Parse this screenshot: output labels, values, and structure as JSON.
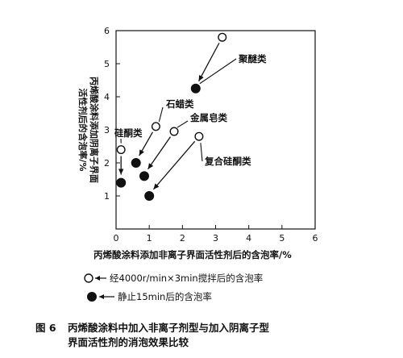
{
  "chart_data": {
    "type": "scatter",
    "xlabel": "丙烯酸涂料添加非离子界面活性剂后的含泡率/%",
    "ylabel": [
      "丙烯酸涂料添加阴离子界面",
      "活性剂后的含泡率/%"
    ],
    "xlim": [
      0,
      6
    ],
    "ylim": [
      0,
      6
    ],
    "xticks": [
      0,
      1,
      2,
      3,
      4,
      5,
      6
    ],
    "yticks": [
      0,
      1,
      2,
      3,
      4,
      5,
      6
    ],
    "grid": false,
    "series": [
      {
        "name": "经4000r/min×3min搅拌后的含泡率",
        "marker": "open-circle",
        "points": [
          [
            0.15,
            2.4
          ],
          [
            1.2,
            3.1
          ],
          [
            1.75,
            2.95
          ],
          [
            2.5,
            2.8
          ],
          [
            3.2,
            5.8
          ]
        ]
      },
      {
        "name": "静止15min后的含泡率",
        "marker": "filled-circle",
        "points": [
          [
            0.15,
            1.4
          ],
          [
            0.6,
            2.0
          ],
          [
            0.85,
            1.6
          ],
          [
            1.0,
            1.0
          ],
          [
            2.4,
            4.25
          ]
        ]
      }
    ],
    "annotations": [
      {
        "text": "硅酮类",
        "target": [
          0.15,
          2.4
        ],
        "to": [
          0.15,
          1.45
        ]
      },
      {
        "text": "石蜡类",
        "target": [
          1.2,
          3.1
        ],
        "to": [
          0.6,
          2.05
        ]
      },
      {
        "text": "金属皂类",
        "target": [
          1.75,
          2.95
        ],
        "to": [
          0.85,
          1.65
        ]
      },
      {
        "text": "复合硅酮类",
        "target": [
          2.5,
          2.8
        ],
        "to": [
          1.0,
          1.05
        ]
      },
      {
        "text": "聚醚类",
        "target": [
          3.2,
          5.8
        ],
        "to": [
          2.4,
          4.3
        ]
      }
    ]
  },
  "caption": {
    "number": "图 6",
    "line1": "丙烯酸涂料中加入非离子剂型与加入阴离子型",
    "line2": "界面活性剂的消泡效果比较"
  }
}
